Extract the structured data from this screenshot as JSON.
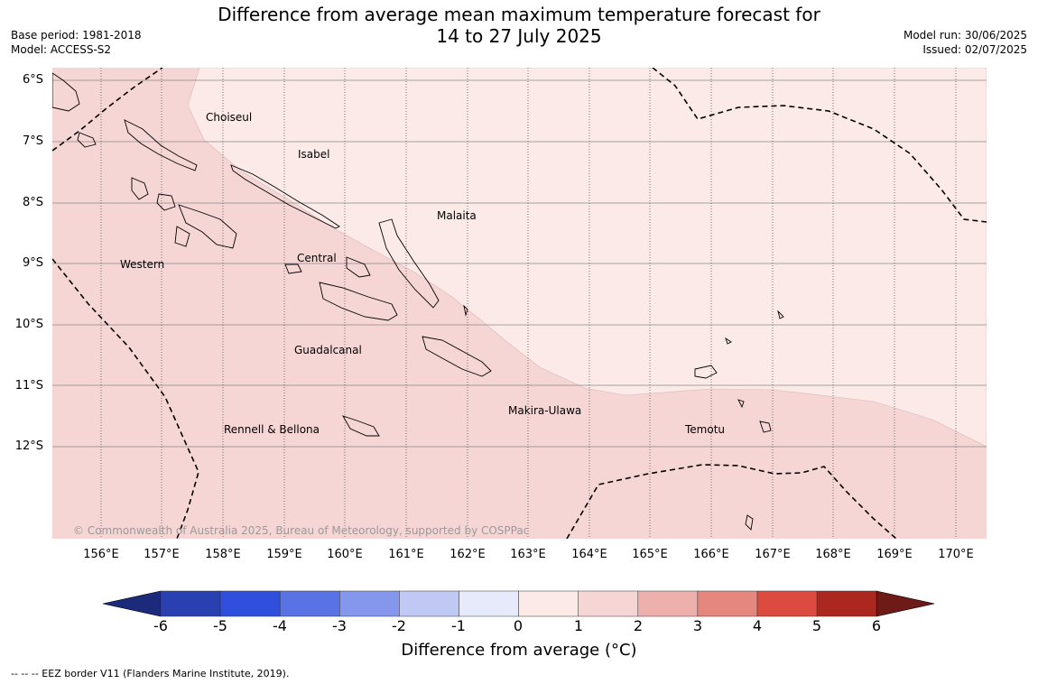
{
  "title": {
    "line1": "Difference from average mean maximum temperature forecast for",
    "line2": "14 to 27 July 2025"
  },
  "meta_left": {
    "base_period": "Base period: 1981-2018",
    "model": "Model: ACCESS-S2"
  },
  "meta_right": {
    "model_run": "Model run: 30/06/2025",
    "issued": "Issued: 02/07/2025"
  },
  "map": {
    "lat_labels": [
      "6°S",
      "7°S",
      "8°S",
      "9°S",
      "10°S",
      "11°S",
      "12°S"
    ],
    "lon_labels": [
      "156°E",
      "157°E",
      "158°E",
      "159°E",
      "160°E",
      "161°E",
      "162°E",
      "163°E",
      "164°E",
      "165°E",
      "166°E",
      "167°E",
      "168°E",
      "169°E",
      "170°E"
    ],
    "regions": {
      "choiseul": "Choiseul",
      "isabel": "Isabel",
      "malaita": "Malaita",
      "western": "Western",
      "central": "Central",
      "guadalcanal": "Guadalcanal",
      "makira": "Makira-Ulawa",
      "temotu": "Temotu",
      "rennell": "Rennell & Bellona"
    },
    "copyright": "© Commonwealth of Australia 2025, Bureau of Meteorology, supported by COSPPac",
    "fill_colors": {
      "anomaly_1_to_2": "#f5d6d4",
      "anomaly_0_to_1": "#fbeae8"
    }
  },
  "colorbar": {
    "label": "Difference from average (°C)",
    "ticks": [
      "-6",
      "-5",
      "-4",
      "-3",
      "-2",
      "-1",
      "0",
      "1",
      "2",
      "3",
      "4",
      "5",
      "6"
    ],
    "colors": [
      "#2a3fb0",
      "#2f4fdc",
      "#5a73e4",
      "#8597ec",
      "#c0c8f4",
      "#e6eafb",
      "#fbeae8",
      "#f5d6d4",
      "#eeb0ac",
      "#e6877f",
      "#dd4a40",
      "#ab2720"
    ],
    "under_color": "#1b2a7a",
    "over_color": "#6e1a16"
  },
  "footer": "-- -- -- EEZ border V11 (Flanders Marine Institute, 2019)."
}
